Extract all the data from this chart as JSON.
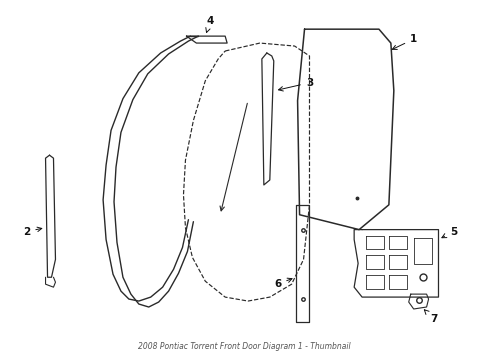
{
  "title": "2008 Pontiac Torrent Front Door Diagram 1 - Thumbnail",
  "bg_color": "#ffffff",
  "line_color": "#2a2a2a",
  "label_color": "#111111",
  "figsize": [
    4.89,
    3.6
  ],
  "dpi": 100
}
